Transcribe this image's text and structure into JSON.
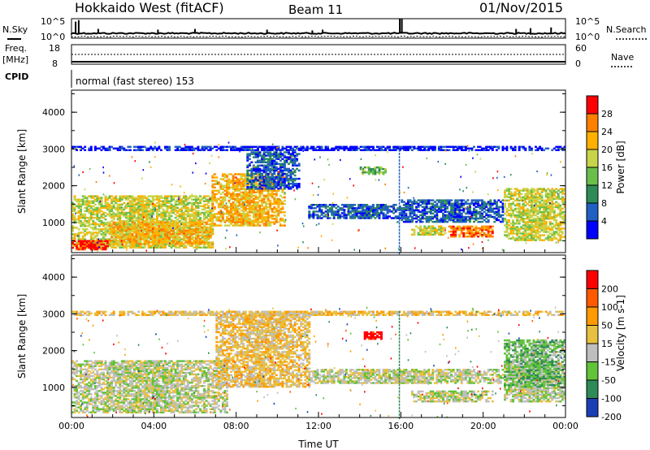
{
  "header": {
    "station": "Hokkaido West (fitACF)",
    "beam": "Beam 11",
    "date": "01/Nov/2015"
  },
  "chart_data": [
    {
      "type": "line",
      "panel": "noise",
      "left_label": "N.Sky",
      "right_label": "N.Search",
      "left_ticks": [
        "10^5",
        "10^0"
      ],
      "right_ticks": [
        "10^5",
        "10^0"
      ],
      "spikes_x_hours": [
        0.2,
        0.35,
        1.3,
        4.2,
        6.0,
        9.5,
        11.7,
        12.2,
        15.95,
        16.05,
        21.6,
        22.3,
        23.3
      ],
      "spike_strength": [
        0.8,
        0.9,
        0.3,
        0.25,
        0.3,
        0.25,
        0.2,
        0.25,
        1.0,
        1.0,
        0.3,
        0.35,
        0.4
      ]
    },
    {
      "type": "line",
      "panel": "frequency",
      "left_label_1": "Freq.",
      "left_label_2": "[MHz]",
      "right_label": "Nave",
      "left_ticks": [
        "18",
        "8"
      ],
      "right_ticks": [
        "60",
        "0"
      ]
    },
    {
      "type": "table",
      "panel": "cpid",
      "label": "CPID",
      "text": "normal (fast stereo) 153"
    },
    {
      "type": "heatmap",
      "panel": "power",
      "ylabel": "Slant Range [km]",
      "yticks": [
        1000,
        2000,
        3000,
        4000
      ],
      "ylim": [
        180,
        4600
      ],
      "xlim": [
        0,
        24
      ],
      "colorbar_label": "Power [dB]",
      "colorbar_ticks": [
        "28",
        "24",
        "20",
        "16",
        "12",
        "8",
        "4"
      ],
      "colorbar_colors": [
        "#0000ff",
        "#2060c0",
        "#2e8b57",
        "#6abf4b",
        "#c8d44a",
        "#ffb000",
        "#ff7f00",
        "#ff0000"
      ],
      "regions": [
        {
          "t0": 0.0,
          "t1": 6.8,
          "r0": 300,
          "r1": 1700,
          "level": 4
        },
        {
          "t0": 0.0,
          "t1": 1.8,
          "r0": 250,
          "r1": 500,
          "level": 7
        },
        {
          "t0": 1.8,
          "t1": 6.8,
          "r0": 400,
          "r1": 1000,
          "level": 5
        },
        {
          "t0": 6.8,
          "t1": 10.3,
          "r0": 900,
          "r1": 2300,
          "level": 5
        },
        {
          "t0": 8.5,
          "t1": 11.0,
          "r0": 1900,
          "r1": 2900,
          "level": 1
        },
        {
          "t0": 11.5,
          "t1": 16.5,
          "r0": 1100,
          "r1": 1500,
          "level": 1
        },
        {
          "t0": 14.0,
          "t1": 15.2,
          "r0": 2300,
          "r1": 2500,
          "level": 3
        },
        {
          "t0": 16.5,
          "t1": 18.2,
          "r0": 650,
          "r1": 900,
          "level": 4
        },
        {
          "t0": 18.3,
          "t1": 20.5,
          "r0": 600,
          "r1": 900,
          "level": 6
        },
        {
          "t0": 16.0,
          "t1": 21.0,
          "r0": 1000,
          "r1": 1600,
          "level": 1
        },
        {
          "t0": 21.0,
          "t1": 24.0,
          "r0": 500,
          "r1": 1900,
          "level": 4
        },
        {
          "t0": 0.0,
          "t1": 24.0,
          "r0": 2950,
          "r1": 3050,
          "level": 0
        }
      ]
    },
    {
      "type": "heatmap",
      "panel": "velocity",
      "ylabel": "Slant Range [km]",
      "yticks": [
        1000,
        2000,
        3000,
        4000
      ],
      "ylim": [
        180,
        4600
      ],
      "xlim": [
        0,
        24
      ],
      "xticks": [
        "00:00",
        "04:00",
        "08:00",
        "12:00",
        "16:00",
        "20:00",
        "00:00"
      ],
      "xlabel": "Time UT",
      "colorbar_label": "Velocity [m s-1]",
      "colorbar_ticks": [
        "200",
        "100",
        "50",
        "15",
        "-15",
        "-50",
        "-100",
        "-200"
      ],
      "colorbar_colors": [
        "#1a3fb5",
        "#2e8b57",
        "#62c23a",
        "#bebebe",
        "#e8c040",
        "#ff9a00",
        "#ff5a00",
        "#ff0000"
      ],
      "regions": [
        {
          "t0": 0.0,
          "t1": 7.5,
          "r0": 300,
          "r1": 1700,
          "level": 3
        },
        {
          "t0": 7.0,
          "t1": 11.5,
          "r0": 1000,
          "r1": 3000,
          "level": 4
        },
        {
          "t0": 14.2,
          "t1": 15.0,
          "r0": 2300,
          "r1": 2500,
          "level": 7
        },
        {
          "t0": 11.5,
          "t1": 21.0,
          "r0": 1100,
          "r1": 1500,
          "level": 3
        },
        {
          "t0": 16.5,
          "t1": 20.5,
          "r0": 600,
          "r1": 900,
          "level": 3
        },
        {
          "t0": 21.0,
          "t1": 24.0,
          "r0": 600,
          "r1": 1700,
          "level": 3
        },
        {
          "t0": 21.0,
          "t1": 24.0,
          "r0": 1000,
          "r1": 2300,
          "level": 2
        },
        {
          "t0": 0.0,
          "t1": 24.0,
          "r0": 2950,
          "r1": 3050,
          "level": 4
        }
      ]
    }
  ]
}
